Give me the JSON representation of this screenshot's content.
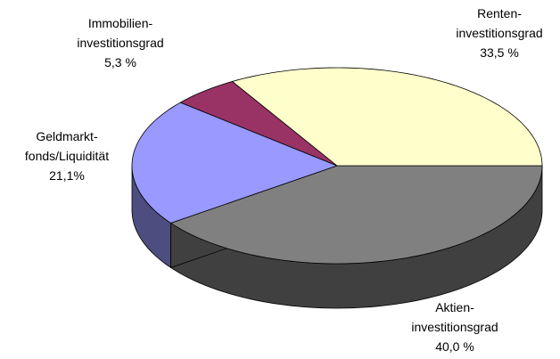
{
  "chart_data": {
    "type": "pie3d",
    "categories": [
      "Aktien-\ninvestitionsgrad",
      "Geldmarkt-\nfonds/Liquidität",
      "Immobilien-\ninvestitionsgrad",
      "Renten-\ninvestitionsgrad"
    ],
    "values": [
      40.0,
      21.1,
      5.3,
      33.5
    ],
    "value_labels": [
      "40,0 %",
      "21,1%",
      "5,3 %",
      "33,5 %"
    ],
    "colors": [
      "#808080",
      "#9999ff",
      "#993366",
      "#ffffcc"
    ],
    "side_colors": [
      "#404040",
      "#4d4d80",
      "#4d1a33",
      "#808066"
    ]
  }
}
